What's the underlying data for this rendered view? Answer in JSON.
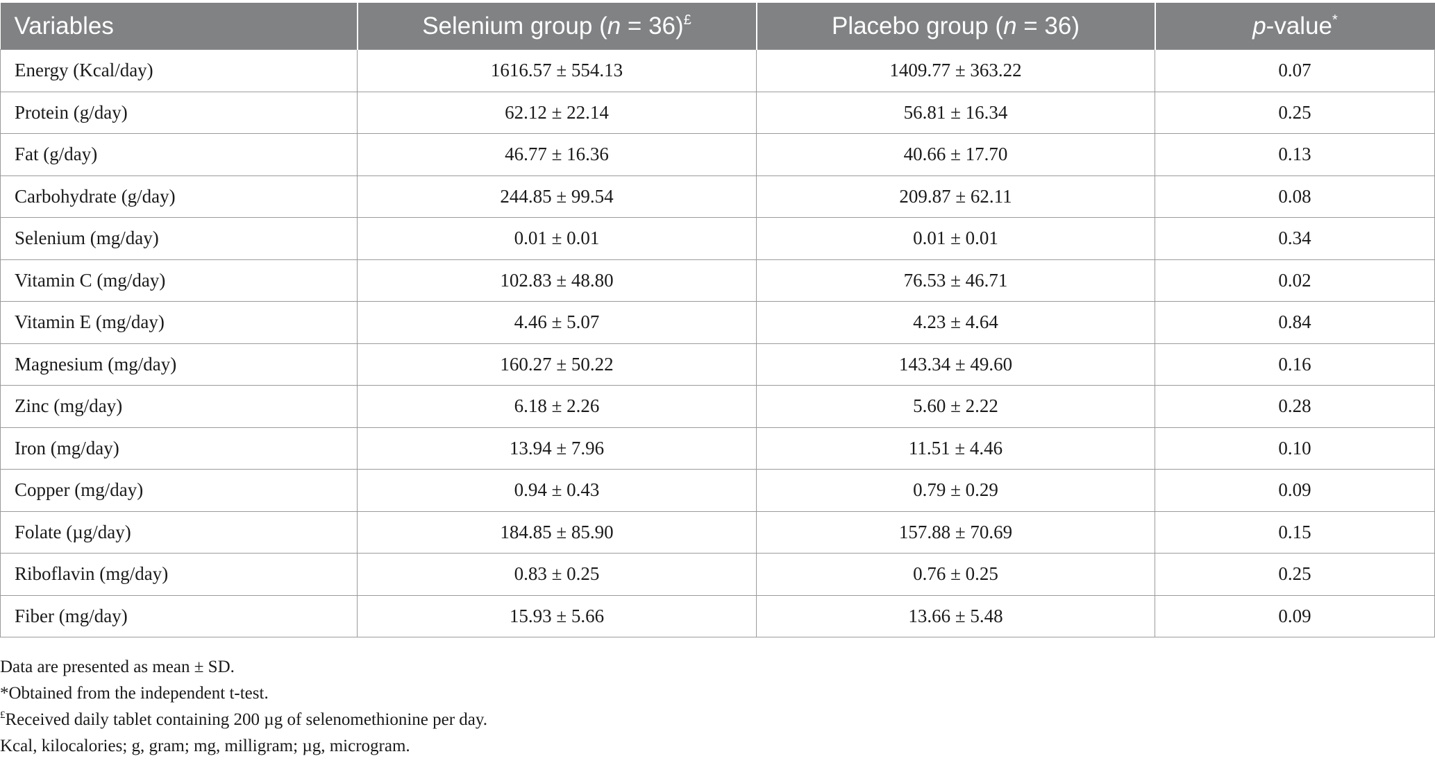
{
  "table": {
    "header": {
      "variables": "Variables",
      "selenium_prefix": "Selenium group (",
      "selenium_n": "n",
      "selenium_suffix": " = 36)",
      "selenium_mark": "£",
      "placebo_prefix": "Placebo group (",
      "placebo_n": "n",
      "placebo_suffix": " = 36)",
      "p_italic": "p",
      "p_suffix": "-value",
      "p_mark": "*"
    },
    "rows": [
      {
        "variable": "Energy (Kcal/day)",
        "selenium": "1616.57 ± 554.13",
        "placebo": "1409.77 ± 363.22",
        "p": "0.07"
      },
      {
        "variable": "Protein (g/day)",
        "selenium": "62.12 ± 22.14",
        "placebo": "56.81 ± 16.34",
        "p": "0.25"
      },
      {
        "variable": "Fat (g/day)",
        "selenium": "46.77 ± 16.36",
        "placebo": "40.66 ± 17.70",
        "p": "0.13"
      },
      {
        "variable": "Carbohydrate (g/day)",
        "selenium": "244.85 ± 99.54",
        "placebo": "209.87 ± 62.11",
        "p": "0.08"
      },
      {
        "variable": "Selenium (mg/day)",
        "selenium": "0.01 ± 0.01",
        "placebo": "0.01 ± 0.01",
        "p": "0.34"
      },
      {
        "variable": "Vitamin C (mg/day)",
        "selenium": "102.83 ± 48.80",
        "placebo": "76.53 ± 46.71",
        "p": "0.02"
      },
      {
        "variable": "Vitamin E (mg/day)",
        "selenium": "4.46 ± 5.07",
        "placebo": "4.23 ± 4.64",
        "p": "0.84"
      },
      {
        "variable": "Magnesium (mg/day)",
        "selenium": "160.27 ± 50.22",
        "placebo": "143.34 ± 49.60",
        "p": "0.16"
      },
      {
        "variable": "Zinc (mg/day)",
        "selenium": "6.18 ± 2.26",
        "placebo": "5.60 ± 2.22",
        "p": "0.28"
      },
      {
        "variable": "Iron (mg/day)",
        "selenium": "13.94 ± 7.96",
        "placebo": "11.51 ± 4.46",
        "p": "0.10"
      },
      {
        "variable": "Copper (mg/day)",
        "selenium": "0.94 ± 0.43",
        "placebo": "0.79 ± 0.29",
        "p": "0.09"
      },
      {
        "variable": "Folate (µg/day)",
        "selenium": "184.85 ± 85.90",
        "placebo": "157.88 ± 70.69",
        "p": "0.15"
      },
      {
        "variable": "Riboflavin (mg/day)",
        "selenium": "0.83 ± 0.25",
        "placebo": "0.76 ± 0.25",
        "p": "0.25"
      },
      {
        "variable": "Fiber (mg/day)",
        "selenium": "15.93 ± 5.66",
        "placebo": "13.66 ± 5.48",
        "p": "0.09"
      }
    ]
  },
  "notes": {
    "line1": "Data are presented as mean ± SD.",
    "line2": "*Obtained from the independent t-test.",
    "line3_mark": "£",
    "line3_text": "Received daily tablet containing 200 µg of selenomethionine per day.",
    "line4": "Kcal, kilocalories; g, gram; mg, milligram; µg, microgram."
  }
}
